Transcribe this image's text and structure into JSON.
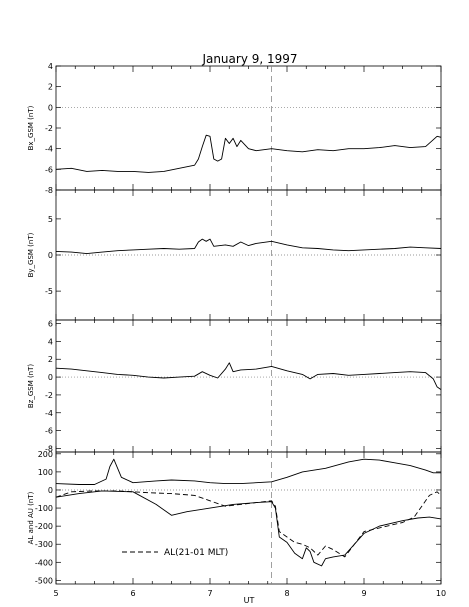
{
  "title": "January 9, 1997",
  "x_axis": {
    "label": "UT",
    "min": 5,
    "max": 10,
    "ticks": [
      "5",
      "6",
      "7",
      "8",
      "9",
      "10"
    ]
  },
  "marker_time": 7.8,
  "chart_data": [
    {
      "type": "line",
      "ylabel": "Bx_GSM (nT)",
      "xlim": [
        5,
        10
      ],
      "ylim": [
        -8,
        4
      ],
      "yticks": [
        "4",
        "2",
        "0",
        "-2",
        "-4",
        "-6",
        "-8"
      ],
      "grid": false,
      "zero_line": true,
      "series": [
        {
          "x": [
            5.0,
            5.2,
            5.4,
            5.6,
            5.8,
            6.0,
            6.2,
            6.4,
            6.6,
            6.8,
            6.85,
            6.9,
            6.95,
            7.0,
            7.05,
            7.1,
            7.15,
            7.2,
            7.25,
            7.3,
            7.35,
            7.4,
            7.5,
            7.6,
            7.8,
            8.0,
            8.2,
            8.4,
            8.6,
            8.8,
            9.0,
            9.2,
            9.4,
            9.6,
            9.8,
            9.95,
            10.0
          ],
          "y": [
            -6.0,
            -5.9,
            -6.2,
            -6.1,
            -6.2,
            -6.2,
            -6.3,
            -6.2,
            -5.9,
            -5.6,
            -5.0,
            -3.8,
            -2.7,
            -2.8,
            -5.0,
            -5.2,
            -5.0,
            -3.0,
            -3.5,
            -3.0,
            -3.8,
            -3.2,
            -4.0,
            -4.2,
            -4.0,
            -4.2,
            -4.3,
            -4.1,
            -4.2,
            -4.0,
            -4.0,
            -3.9,
            -3.7,
            -3.9,
            -3.8,
            -2.8,
            -2.9
          ],
          "style": "solid"
        }
      ]
    },
    {
      "type": "line",
      "ylabel": "By_GSM (nT)",
      "xlim": [
        5,
        10
      ],
      "ylim": [
        -9,
        9
      ],
      "yticks": [
        "5",
        "0",
        "-5"
      ],
      "grid": false,
      "zero_line": true,
      "series": [
        {
          "x": [
            5.0,
            5.2,
            5.4,
            5.6,
            5.8,
            6.0,
            6.2,
            6.4,
            6.6,
            6.8,
            6.85,
            6.9,
            6.95,
            7.0,
            7.05,
            7.2,
            7.3,
            7.4,
            7.5,
            7.6,
            7.8,
            8.0,
            8.2,
            8.4,
            8.6,
            8.8,
            9.0,
            9.2,
            9.4,
            9.6,
            9.8,
            10.0
          ],
          "y": [
            0.5,
            0.4,
            0.2,
            0.4,
            0.6,
            0.7,
            0.8,
            0.9,
            0.8,
            0.9,
            1.8,
            2.2,
            1.9,
            2.2,
            1.2,
            1.4,
            1.2,
            1.8,
            1.3,
            1.6,
            1.9,
            1.4,
            1.0,
            0.9,
            0.7,
            0.6,
            0.7,
            0.8,
            0.9,
            1.1,
            1.0,
            0.9
          ],
          "style": "solid"
        }
      ]
    },
    {
      "type": "line",
      "ylabel": "Bz_GSM (nT)",
      "xlim": [
        5,
        10
      ],
      "ylim": [
        -8.4,
        6.4
      ],
      "yticks": [
        "6",
        "4",
        "2",
        "0",
        "-2",
        "-4",
        "-6",
        "-8"
      ],
      "grid": false,
      "zero_line": true,
      "series": [
        {
          "x": [
            5.0,
            5.2,
            5.4,
            5.6,
            5.8,
            6.0,
            6.2,
            6.4,
            6.6,
            6.8,
            6.9,
            7.0,
            7.1,
            7.2,
            7.25,
            7.3,
            7.4,
            7.6,
            7.8,
            8.0,
            8.2,
            8.3,
            8.4,
            8.6,
            8.8,
            9.0,
            9.2,
            9.4,
            9.6,
            9.8,
            9.9,
            9.95,
            10.0
          ],
          "y": [
            1.0,
            0.9,
            0.7,
            0.5,
            0.3,
            0.2,
            0.0,
            -0.1,
            0.0,
            0.1,
            0.6,
            0.2,
            -0.1,
            0.9,
            1.6,
            0.6,
            0.8,
            0.9,
            1.2,
            0.7,
            0.3,
            -0.2,
            0.3,
            0.4,
            0.2,
            0.3,
            0.4,
            0.5,
            0.6,
            0.5,
            -0.2,
            -1.1,
            -1.4
          ],
          "style": "solid"
        }
      ]
    },
    {
      "type": "line",
      "ylabel": "AL and AU (nT)",
      "xlim": [
        5,
        10
      ],
      "ylim": [
        -520,
        210
      ],
      "yticks": [
        "200",
        "100",
        "0",
        "-100",
        "-200",
        "-300",
        "-400",
        "-500"
      ],
      "grid": false,
      "zero_line": true,
      "legend": {
        "label": "AL(21-01 MLT)",
        "style": "dashed",
        "position": "bottom-left"
      },
      "series": [
        {
          "x": [
            5.0,
            5.3,
            5.5,
            5.65,
            5.7,
            5.75,
            5.85,
            6.0,
            6.3,
            6.5,
            6.8,
            7.0,
            7.2,
            7.4,
            7.6,
            7.8,
            8.0,
            8.2,
            8.5,
            8.8,
            9.0,
            9.2,
            9.4,
            9.6,
            9.8,
            9.9,
            10.0
          ],
          "y": [
            35,
            30,
            30,
            60,
            130,
            170,
            70,
            40,
            50,
            55,
            50,
            40,
            35,
            35,
            40,
            45,
            70,
            100,
            120,
            155,
            170,
            165,
            150,
            135,
            110,
            95,
            95
          ],
          "style": "solid"
        },
        {
          "x": [
            5.0,
            5.3,
            5.6,
            6.0,
            6.3,
            6.5,
            6.7,
            7.0,
            7.3,
            7.6,
            7.8,
            7.85,
            7.9,
            8.0,
            8.1,
            8.2,
            8.25,
            8.3,
            8.35,
            8.45,
            8.5,
            8.6,
            8.75,
            9.0,
            9.2,
            9.5,
            9.7,
            9.85,
            10.0
          ],
          "y": [
            -40,
            -20,
            -5,
            -10,
            -80,
            -140,
            -120,
            -100,
            -80,
            -70,
            -65,
            -100,
            -260,
            -290,
            -350,
            -380,
            -320,
            -340,
            -400,
            -420,
            -380,
            -370,
            -360,
            -240,
            -200,
            -170,
            -155,
            -150,
            -160
          ],
          "style": "solid"
        },
        {
          "name": "AL(21-01 MLT)",
          "x": [
            5.0,
            5.2,
            5.5,
            5.8,
            6.0,
            6.2,
            6.5,
            6.8,
            7.0,
            7.2,
            7.4,
            7.6,
            7.8,
            7.85,
            7.9,
            8.0,
            8.1,
            8.2,
            8.3,
            8.4,
            8.5,
            8.6,
            8.75,
            9.0,
            9.2,
            9.5,
            9.65,
            9.75,
            9.85,
            9.95,
            10.0
          ],
          "y": [
            -40,
            -10,
            -5,
            -5,
            -10,
            -15,
            -20,
            -30,
            -60,
            -90,
            -80,
            -70,
            -60,
            -90,
            -230,
            -260,
            -290,
            -300,
            -320,
            -360,
            -310,
            -330,
            -370,
            -230,
            -210,
            -180,
            -150,
            -90,
            -30,
            -10,
            -30
          ],
          "style": "dashed"
        }
      ]
    }
  ]
}
